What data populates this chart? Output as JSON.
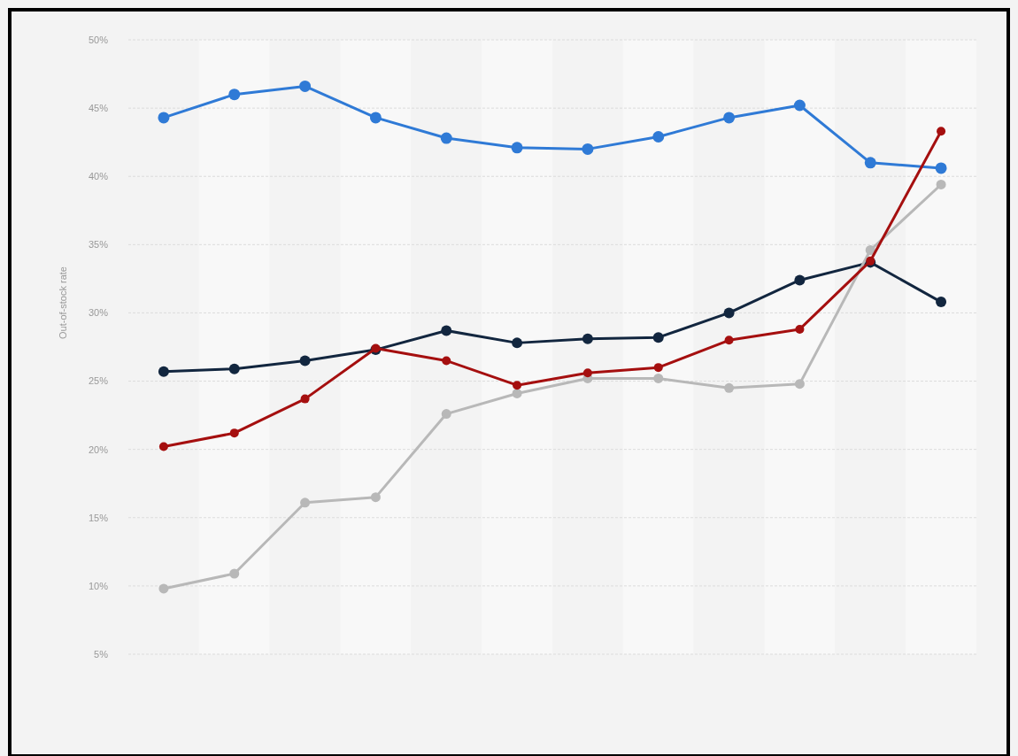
{
  "chart_data": {
    "type": "line",
    "ylabel": "Out-of-stock rate",
    "categories": [
      null,
      null,
      null,
      null,
      null,
      null,
      null,
      null,
      null,
      null,
      null,
      null
    ],
    "series": [
      {
        "color": "#2f7ad6",
        "values": [
          44.3,
          46.0,
          46.6,
          44.3,
          42.8,
          42.1,
          42.0,
          42.9,
          44.3,
          45.2,
          41.0,
          40.6
        ]
      },
      {
        "color": "#12263f",
        "values": [
          25.7,
          25.9,
          26.5,
          27.3,
          28.7,
          27.8,
          28.1,
          28.2,
          30.0,
          32.4,
          33.7,
          30.8
        ]
      },
      {
        "color": "#b8b8b8",
        "values": [
          9.8,
          10.9,
          16.1,
          16.5,
          22.6,
          24.1,
          25.2,
          25.2,
          24.5,
          24.8,
          34.6,
          39.4
        ]
      },
      {
        "color": "#a50f0f",
        "values": [
          20.2,
          21.2,
          23.7,
          27.4,
          26.5,
          24.7,
          25.6,
          26.0,
          28.0,
          28.8,
          33.8,
          43.3
        ]
      }
    ],
    "ylim": [
      5,
      50
    ],
    "yticks": [
      {
        "value": 5,
        "label": "5%"
      },
      {
        "value": 10,
        "label": "10%"
      },
      {
        "value": 15,
        "label": "15%"
      },
      {
        "value": 20,
        "label": "20%"
      },
      {
        "value": 25,
        "label": "25%"
      },
      {
        "value": 30,
        "label": "30%"
      },
      {
        "value": 35,
        "label": "35%"
      },
      {
        "value": 40,
        "label": "40%"
      },
      {
        "value": 45,
        "label": "45%"
      },
      {
        "value": 50,
        "label": "50%"
      }
    ],
    "grid": "y",
    "marker": "circle",
    "line_style": "solid"
  }
}
